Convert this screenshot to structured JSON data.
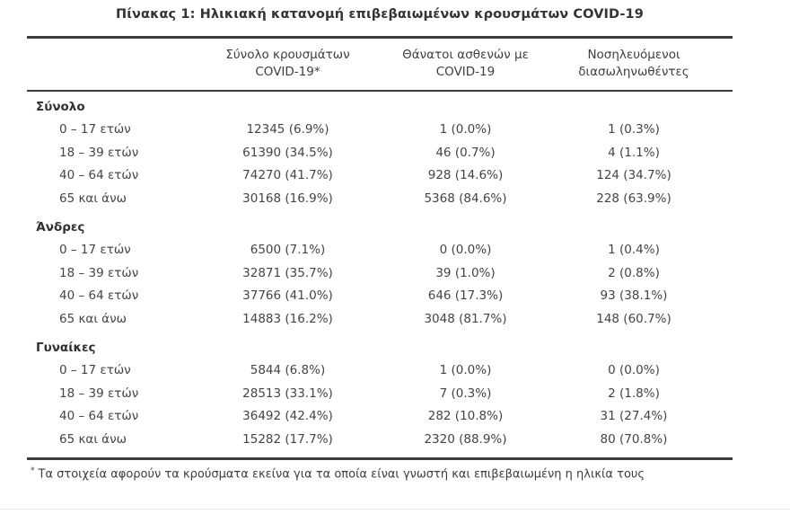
{
  "title": "Πίνακας 1: Ηλικιακή κατανομή επιβεβαιωμένων κρουσμάτων COVID-19",
  "table": {
    "header": [
      {
        "line1": "Σύνολο κρουσμάτων",
        "line2": "COVID-19*"
      },
      {
        "line1": "Θάνατοι ασθενών με",
        "line2": "COVID-19"
      },
      {
        "line1": "Νοσηλευόμενοι",
        "line2": "διασωληνωθέντες"
      }
    ],
    "sections": [
      {
        "label": "Σύνολο",
        "rows": [
          {
            "age": "0 – 17 ετών",
            "cases": "12345 (6.9%)",
            "deaths": "1 (0.0%)",
            "intubated": "1 (0.3%)"
          },
          {
            "age": "18 – 39 ετών",
            "cases": "61390 (34.5%)",
            "deaths": "46 (0.7%)",
            "intubated": "4 (1.1%)"
          },
          {
            "age": "40 – 64 ετών",
            "cases": "74270 (41.7%)",
            "deaths": "928 (14.6%)",
            "intubated": "124 (34.7%)"
          },
          {
            "age": "65 και άνω",
            "cases": "30168 (16.9%)",
            "deaths": "5368 (84.6%)",
            "intubated": "228 (63.9%)"
          }
        ]
      },
      {
        "label": "Άνδρες",
        "rows": [
          {
            "age": "0 – 17 ετών",
            "cases": "6500 (7.1%)",
            "deaths": "0 (0.0%)",
            "intubated": "1 (0.4%)"
          },
          {
            "age": "18 – 39 ετών",
            "cases": "32871 (35.7%)",
            "deaths": "39 (1.0%)",
            "intubated": "2 (0.8%)"
          },
          {
            "age": "40 – 64 ετών",
            "cases": "37766 (41.0%)",
            "deaths": "646 (17.3%)",
            "intubated": "93 (38.1%)"
          },
          {
            "age": "65 και άνω",
            "cases": "14883 (16.2%)",
            "deaths": "3048 (81.7%)",
            "intubated": "148 (60.7%)"
          }
        ]
      },
      {
        "label": "Γυναίκες",
        "rows": [
          {
            "age": "0 – 17 ετών",
            "cases": "5844 (6.8%)",
            "deaths": "1 (0.0%)",
            "intubated": "0 (0.0%)"
          },
          {
            "age": "18 – 39 ετών",
            "cases": "28513 (33.1%)",
            "deaths": "7 (0.3%)",
            "intubated": "2 (1.8%)"
          },
          {
            "age": "40 – 64 ετών",
            "cases": "36492 (42.4%)",
            "deaths": "282 (10.8%)",
            "intubated": "31 (27.4%)"
          },
          {
            "age": "65 και άνω",
            "cases": "15282 (17.7%)",
            "deaths": "2320 (88.9%)",
            "intubated": "80 (70.8%)"
          }
        ]
      }
    ]
  },
  "footnote": {
    "marker": "*",
    "text": "Τα στοιχεία αφορούν τα κρούσματα εκείνα για τα οποία είναι γνωστή και επιβεβαιωμένη η ηλικία τους"
  },
  "colors": {
    "rule": "#3d3d3d",
    "text": "#43434c",
    "bold_text": "#2f2f37"
  }
}
